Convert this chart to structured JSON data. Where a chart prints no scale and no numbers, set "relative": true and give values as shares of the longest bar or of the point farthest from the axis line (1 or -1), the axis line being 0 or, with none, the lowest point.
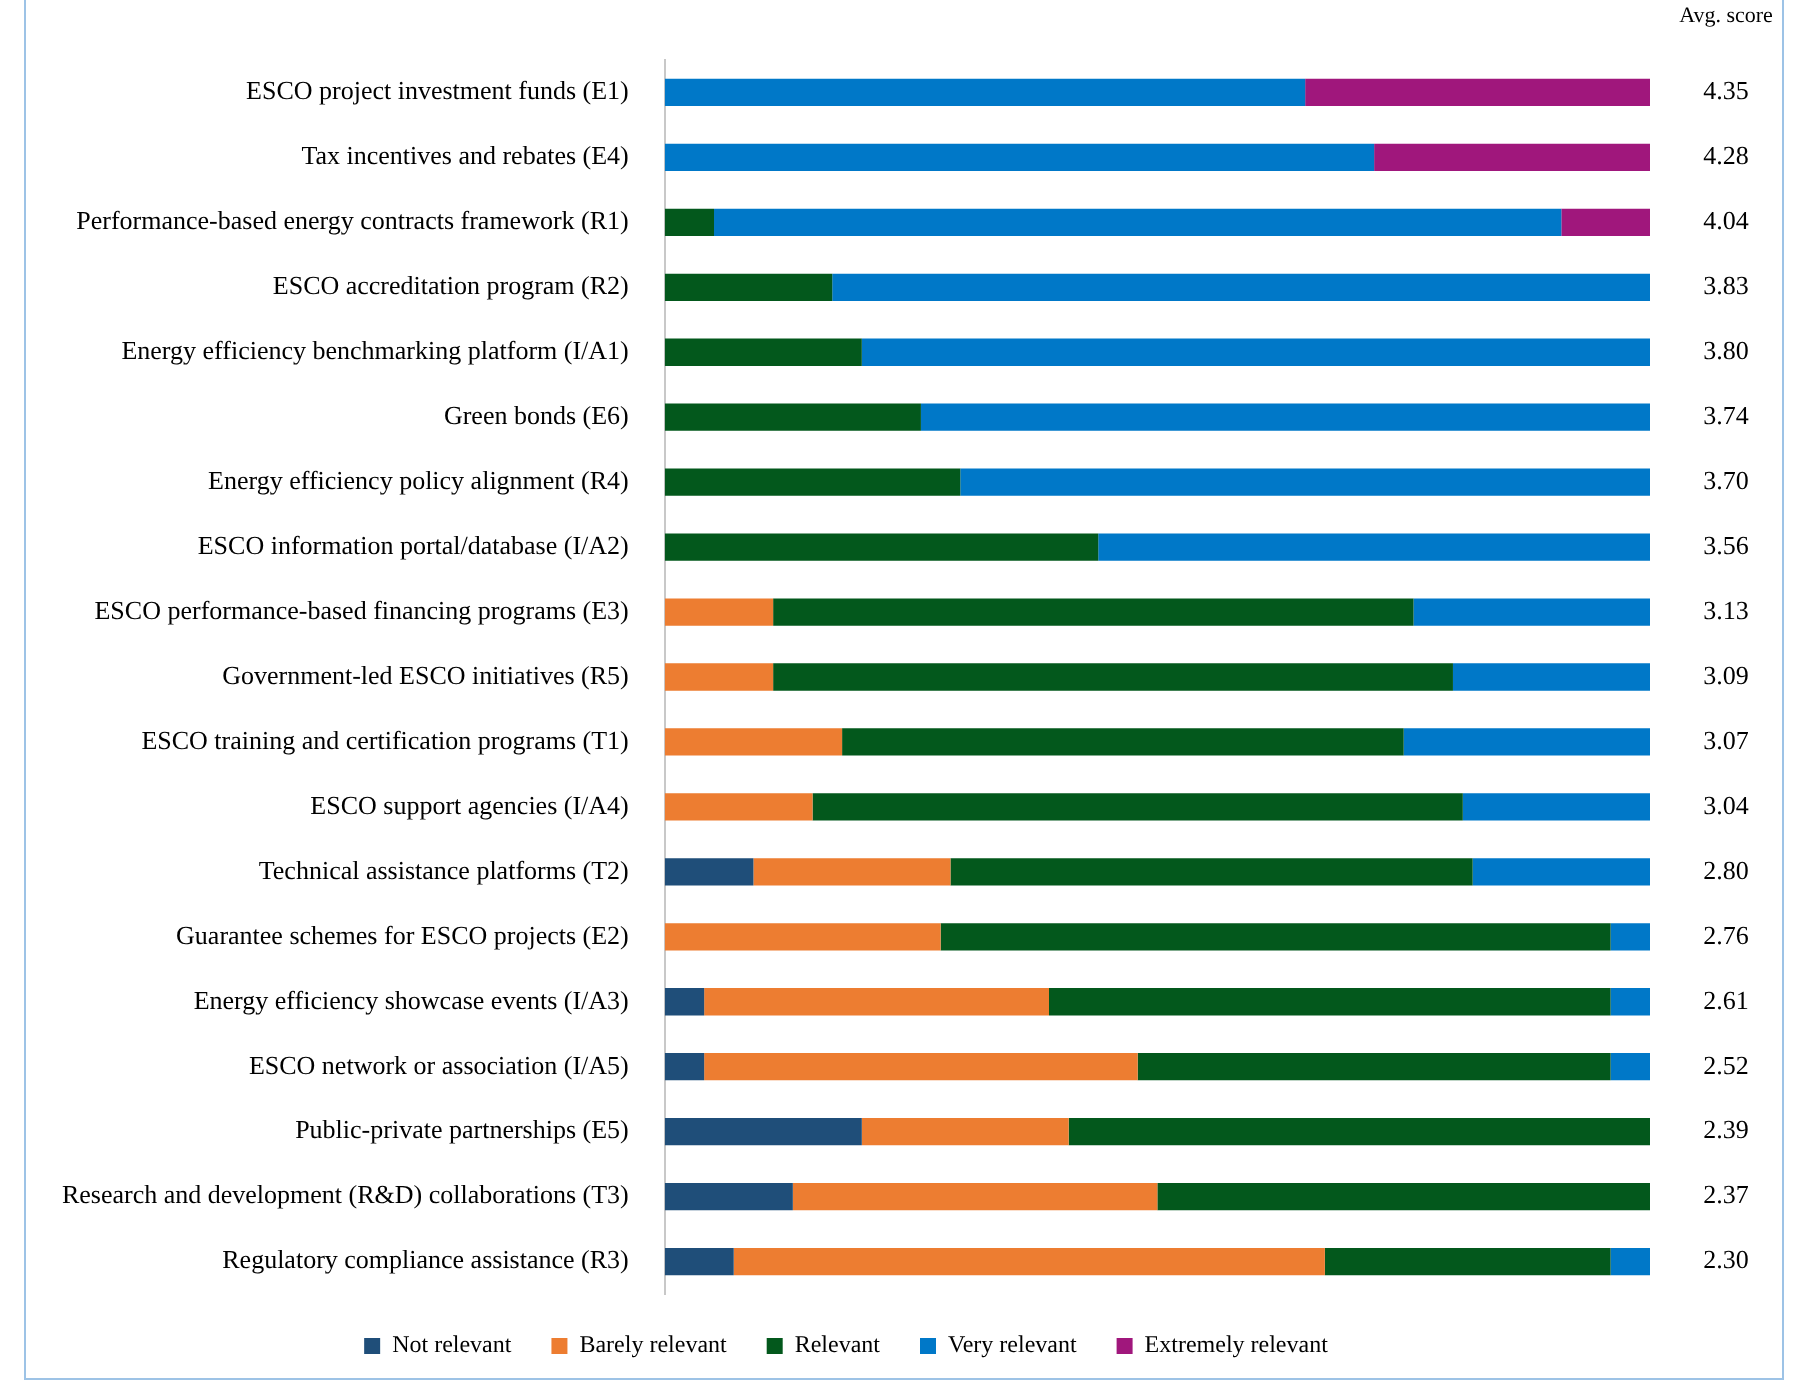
{
  "chart_data": {
    "type": "bar",
    "orientation": "horizontal",
    "stacked": true,
    "relative": true,
    "legend": "bottom",
    "categories": [
      "ESCO project investment funds (E1)",
      "Tax incentives and rebates (E4)",
      "Performance-based energy contracts framework (R1)",
      "ESCO accreditation program (R2)",
      "Energy efficiency benchmarking platform (I/A1)",
      "Green bonds (E6)",
      "Energy efficiency policy alignment (R4)",
      "ESCO information portal/database (I/A2)",
      "ESCO performance-based financing programs (E3)",
      "Government-led ESCO initiatives (R5)",
      "ESCO training and certification programs (T1)",
      "ESCO support agencies (I/A4)",
      "Technical assistance platforms (T2)",
      "Guarantee schemes for ESCO projects (E2)",
      "Energy efficiency showcase events (I/A3)",
      "ESCO network or association (I/A5)",
      "Public-private partnerships (E5)",
      "Research and development (R&D) collaborations (T3)",
      "Regulatory compliance assistance (R3)"
    ],
    "series": [
      {
        "name": "Not relevant",
        "color": "#1f4e79",
        "values": [
          0,
          0,
          0,
          0,
          0,
          0,
          0,
          0,
          0,
          0,
          0,
          0,
          0.09,
          0,
          0.04,
          0.04,
          0.2,
          0.13,
          0.07
        ]
      },
      {
        "name": "Barely relevant",
        "color": "#ed7d31",
        "values": [
          0,
          0,
          0,
          0,
          0,
          0,
          0,
          0,
          0.11,
          0.11,
          0.18,
          0.15,
          0.2,
          0.28,
          0.35,
          0.44,
          0.21,
          0.37,
          0.6
        ]
      },
      {
        "name": "Relevant",
        "color": "#03581c",
        "values": [
          0,
          0,
          0.05,
          0.17,
          0.2,
          0.26,
          0.3,
          0.44,
          0.65,
          0.69,
          0.57,
          0.66,
          0.53,
          0.68,
          0.57,
          0.48,
          0.59,
          0.5,
          0.29
        ]
      },
      {
        "name": "Very relevant",
        "color": "#0078c8",
        "values": [
          0.65,
          0.72,
          0.86,
          0.83,
          0.8,
          0.74,
          0.7,
          0.56,
          0.24,
          0.2,
          0.25,
          0.19,
          0.18,
          0.04,
          0.04,
          0.04,
          0,
          0,
          0.04
        ]
      },
      {
        "name": "Extremely relevant",
        "color": "#a0177c",
        "values": [
          0.35,
          0.28,
          0.09,
          0,
          0,
          0,
          0,
          0,
          0,
          0,
          0,
          0,
          0,
          0,
          0,
          0,
          0,
          0,
          0
        ]
      }
    ],
    "annotations": [
      "Avg. score",
      "4.35",
      "4.28",
      "4.04",
      "3.83",
      "3.80",
      "3.74",
      "3.70",
      "3.56",
      "3.13",
      "3.09",
      "3.07",
      "3.04",
      "2.80",
      "2.76",
      "2.61",
      "2.52",
      "2.39",
      "2.37",
      "2.30"
    ]
  }
}
